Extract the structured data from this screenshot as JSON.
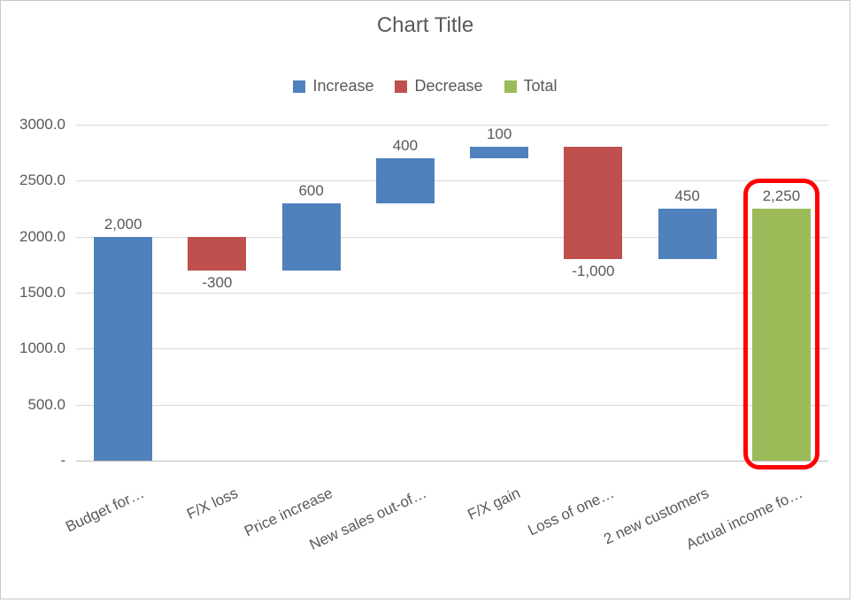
{
  "chart": {
    "title": "Chart Title",
    "title_fontsize": 24,
    "title_color": "#595959",
    "background_color": "#ffffff",
    "border_color": "#c9c9c9",
    "grid_color": "#d9d9d9",
    "axis_label_color": "#595959",
    "axis_label_fontsize": 17,
    "type": "waterfall",
    "legend": {
      "items": [
        {
          "label": "Increase",
          "color": "#4f81bd"
        },
        {
          "label": "Decrease",
          "color": "#c0504d"
        },
        {
          "label": "Total",
          "color": "#9bbb59"
        }
      ]
    },
    "y_axis": {
      "min": 0,
      "max": 3000,
      "tick_step": 500,
      "ticks": [
        {
          "value": 0,
          "label": "-"
        },
        {
          "value": 500,
          "label": "500.0"
        },
        {
          "value": 1000,
          "label": "1000.0"
        },
        {
          "value": 1500,
          "label": "1500.0"
        },
        {
          "value": 2000,
          "label": "2000.0"
        },
        {
          "value": 2500,
          "label": "2500.0"
        },
        {
          "value": 3000,
          "label": "3000.0"
        }
      ]
    },
    "bars": [
      {
        "category": "Budget for…",
        "label": "2,000",
        "value": 2000,
        "type": "increase",
        "start": 0,
        "end": 2000
      },
      {
        "category": "F/X loss",
        "label": "-300",
        "value": -300,
        "type": "decrease",
        "start": 2000,
        "end": 1700
      },
      {
        "category": "Price increase",
        "label": "600",
        "value": 600,
        "type": "increase",
        "start": 1700,
        "end": 2300
      },
      {
        "category": "New sales out-of…",
        "label": "400",
        "value": 400,
        "type": "increase",
        "start": 2300,
        "end": 2700
      },
      {
        "category": "F/X gain",
        "label": "100",
        "value": 100,
        "type": "increase",
        "start": 2700,
        "end": 2800
      },
      {
        "category": "Loss of one…",
        "label": "-1,000",
        "value": -1000,
        "type": "decrease",
        "start": 2800,
        "end": 1800
      },
      {
        "category": "2 new customers",
        "label": "450",
        "value": 450,
        "type": "increase",
        "start": 1800,
        "end": 2250
      },
      {
        "category": "Actual income fo…",
        "label": "2,250",
        "value": 2250,
        "type": "total",
        "start": 0,
        "end": 2250
      }
    ],
    "series_colors": {
      "increase": "#4f81bd",
      "decrease": "#c0504d",
      "total": "#9bbb59"
    },
    "bar_width_ratio": 0.62,
    "highlight": {
      "bar_index": 7,
      "stroke_color": "#ff0000",
      "stroke_width": 5,
      "border_radius": 18
    }
  }
}
